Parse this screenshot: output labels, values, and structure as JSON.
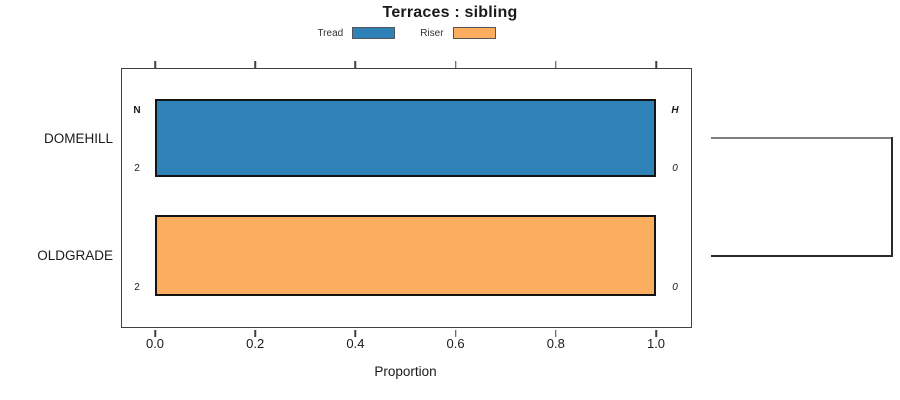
{
  "chart_data": {
    "type": "bar",
    "orientation": "horizontal",
    "title": "Terraces : sibling",
    "xlabel": "Proportion",
    "xlim": [
      0,
      1.0
    ],
    "x_ticks": [
      0,
      0.2,
      0.4,
      0.6,
      0.8,
      1.0
    ],
    "x_tick_labels": [
      "0.0",
      "0.2",
      "0.4",
      "0.6",
      "0.8",
      "1.0"
    ],
    "categories": [
      "DOMEHILL",
      "OLDGRADE"
    ],
    "grid": false,
    "legend_position": "top-center",
    "legend": [
      {
        "label": "Tread",
        "color": "#2e82b8"
      },
      {
        "label": "Riser",
        "color": "#fbad60"
      }
    ],
    "bars": [
      {
        "category": "DOMEHILL",
        "series": "Tread",
        "proportion": 1.0,
        "color": "#2e82b8",
        "left_header": "N",
        "left_count": "2",
        "right_header": "H",
        "right_count": "0"
      },
      {
        "category": "OLDGRADE",
        "series": "Riser",
        "proportion": 1.0,
        "color": "#fbad60",
        "left_header": "",
        "left_count": "2",
        "right_header": "",
        "right_count": "0"
      }
    ],
    "connector": {
      "type": "sibling-link",
      "connects": [
        "DOMEHILL",
        "OLDGRADE"
      ],
      "top_line_color": "#808080",
      "bottom_line_color": "#2b2b2b"
    }
  },
  "colors": {
    "bar_border": "#141414",
    "axis": "#404040",
    "text": "#1a1a1a"
  }
}
